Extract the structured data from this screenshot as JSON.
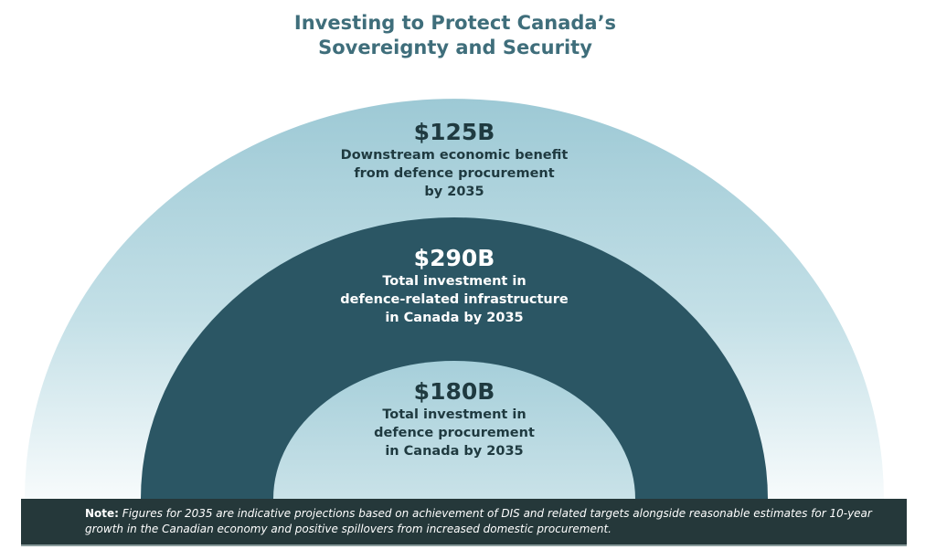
{
  "title": {
    "line1": "Investing to Protect Canada’s",
    "line2": "Sovereignty and Security"
  },
  "rings": [
    {
      "amount": "$125B",
      "lines": [
        "Downstream economic benefit",
        "from defence procurement",
        "by 2035"
      ]
    },
    {
      "amount": "$290B",
      "lines": [
        "Total investment in",
        "defence-related infrastructure",
        "in Canada by 2035"
      ]
    },
    {
      "amount": "$180B",
      "lines": [
        "Total investment in",
        "defence procurement",
        "in Canada by 2035"
      ]
    }
  ],
  "note": {
    "label": "Note:",
    "text": "Figures for 2035 are indicative projections based on achievement of DIS and related targets alongside reasonable estimates for 10-year growth in the Canadian economy and positive spillovers from increased domestic procurement."
  },
  "colors": {
    "title": "#3f6e7b",
    "outer": "#9fcbd6",
    "middle": "#2b5664",
    "inner": "#a8d0db",
    "note_bg": "#25383a"
  }
}
